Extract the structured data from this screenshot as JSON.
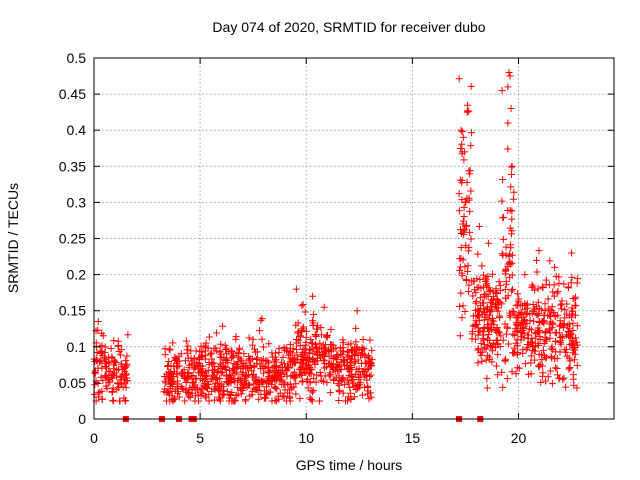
{
  "chart_data": {
    "type": "scatter",
    "title": "Day 074 of 2020, SRMTID for receiver dubo",
    "xlabel": "GPS time / hours",
    "ylabel": "SRMTID / TECUs",
    "xlim": [
      0,
      24.5
    ],
    "ylim": [
      0,
      0.5
    ],
    "xticks": [
      0,
      5,
      10,
      15,
      20
    ],
    "xtick_labels": [
      "0",
      "5",
      "10",
      "15",
      "20"
    ],
    "yticks": [
      0,
      0.05,
      0.1,
      0.15,
      0.2,
      0.25,
      0.3,
      0.35,
      0.4,
      0.45,
      0.5
    ],
    "ytick_labels": [
      "0",
      "0.05",
      "0.1",
      "0.15",
      "0.2",
      "0.25",
      "0.3",
      "0.35",
      "0.4",
      "0.45",
      "0.5"
    ],
    "grid": true,
    "marker": "+",
    "color": "#ff0000",
    "series": [
      {
        "name": "SRMTID",
        "segments": [
          {
            "x_range": [
              0.0,
              1.6
            ],
            "center": 0.068,
            "spread": 0.03,
            "count": 130
          },
          {
            "x_range": [
              3.3,
              5.0
            ],
            "center": 0.058,
            "spread": 0.028,
            "count": 150
          },
          {
            "x_range": [
              5.0,
              9.5
            ],
            "center": 0.062,
            "spread": 0.03,
            "count": 420
          },
          {
            "x_range": [
              9.5,
              11.2
            ],
            "center": 0.085,
            "spread": 0.035,
            "count": 170
          },
          {
            "x_range": [
              11.2,
              13.1
            ],
            "center": 0.07,
            "spread": 0.03,
            "count": 170
          },
          {
            "x_range": [
              17.2,
              17.8
            ],
            "center": 0.27,
            "spread": 0.09,
            "count": 70
          },
          {
            "x_range": [
              17.8,
              19.2
            ],
            "center": 0.14,
            "spread": 0.05,
            "count": 160
          },
          {
            "x_range": [
              19.2,
              19.8
            ],
            "center": 0.2,
            "spread": 0.11,
            "count": 70
          },
          {
            "x_range": [
              19.8,
              22.8
            ],
            "center": 0.12,
            "spread": 0.045,
            "count": 300
          }
        ],
        "peaks": [
          {
            "x": 17.3,
            "y": 0.4
          },
          {
            "x": 17.4,
            "y": 0.39
          },
          {
            "x": 17.35,
            "y": 0.37
          },
          {
            "x": 19.55,
            "y": 0.48
          },
          {
            "x": 19.6,
            "y": 0.475
          },
          {
            "x": 19.5,
            "y": 0.46
          },
          {
            "x": 19.65,
            "y": 0.43
          },
          {
            "x": 19.5,
            "y": 0.41
          },
          {
            "x": 19.7,
            "y": 0.35
          },
          {
            "x": 10.3,
            "y": 0.17
          },
          {
            "x": 12.4,
            "y": 0.15
          },
          {
            "x": 0.2,
            "y": 0.135
          },
          {
            "x": 22.5,
            "y": 0.23
          },
          {
            "x": 21.7,
            "y": 0.21
          },
          {
            "x": 20.3,
            "y": 0.2
          }
        ],
        "zero_values_x": [
          1.5,
          3.2,
          4.0,
          4.6,
          4.7,
          17.2,
          18.2
        ]
      }
    ]
  }
}
